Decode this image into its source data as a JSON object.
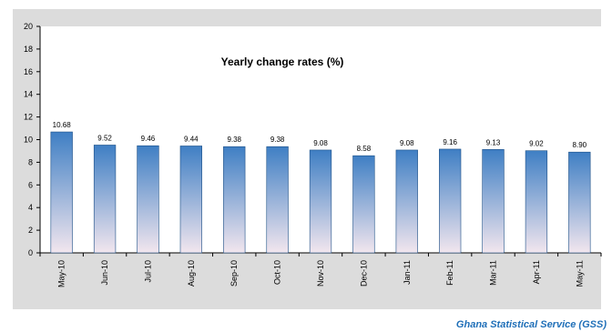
{
  "chart_data": {
    "type": "bar",
    "title": "Yearly change rates (%)",
    "categories": [
      "May-10",
      "Jun-10",
      "Jul-10",
      "Aug-10",
      "Sep-10",
      "Oct-10",
      "Nov-10",
      "Dec-10",
      "Jan-11",
      "Feb-11",
      "Mar-11",
      "Apr-11",
      "May-11"
    ],
    "values": [
      10.68,
      9.52,
      9.46,
      9.44,
      9.38,
      9.38,
      9.08,
      8.58,
      9.08,
      9.16,
      9.13,
      9.02,
      8.9
    ],
    "data_labels": [
      "10.68",
      "9.52",
      "9.46",
      "9.44",
      "9.38",
      "9.38",
      "9.08",
      "8.58",
      "9.08",
      "9.16",
      "9.13",
      "9.02",
      "8.90"
    ],
    "yticks": [
      "0",
      "2",
      "4",
      "6",
      "8",
      "10",
      "12",
      "14",
      "16",
      "18",
      "20"
    ],
    "ylim": [
      0,
      20
    ],
    "xlabel": "",
    "ylabel": "",
    "grid": false,
    "legend": "none"
  },
  "source_text": "Ghana Statistical Service (GSS)",
  "colors": {
    "panel_background": "#dcdcdc",
    "plot_background": "#ffffff",
    "bar_top": "#3f7fc4",
    "bar_bottom": "#f2e6ee",
    "source_text": "#1f6fb8"
  }
}
